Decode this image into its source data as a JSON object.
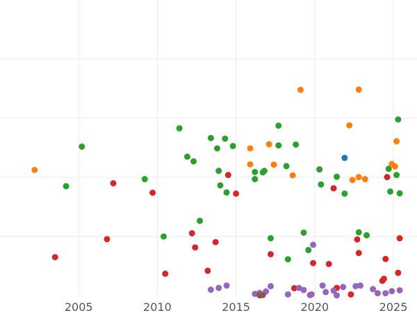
{
  "chart_data": {
    "type": "scatter",
    "title": "",
    "xlabel": "",
    "ylabel": "",
    "xlim": [
      2000,
      2026.5
    ],
    "ylim": [
      0,
      100
    ],
    "grid": true,
    "x_ticks": [
      2005,
      2010,
      2015,
      2020,
      2025
    ],
    "x_tick_labels": [
      "2005",
      "2010",
      "2015",
      "2020",
      "2025"
    ],
    "y_gridlines": [
      20,
      40,
      60,
      80
    ],
    "series": [
      {
        "name": "green",
        "color": "#2ca02c",
        "points": [
          [
            2005.2,
            50.4
          ],
          [
            2004.2,
            37.0
          ],
          [
            2009.2,
            39.4
          ],
          [
            2010.4,
            20.0
          ],
          [
            2011.4,
            56.6
          ],
          [
            2011.9,
            47.0
          ],
          [
            2012.3,
            45.4
          ],
          [
            2012.7,
            25.3
          ],
          [
            2013.4,
            53.3
          ],
          [
            2013.8,
            49.8
          ],
          [
            2013.9,
            42.2
          ],
          [
            2014.0,
            37.3
          ],
          [
            2014.3,
            53.1
          ],
          [
            2014.4,
            34.9
          ],
          [
            2014.8,
            50.6
          ],
          [
            2016.2,
            41.8
          ],
          [
            2016.2,
            39.4
          ],
          [
            2016.7,
            41.7
          ],
          [
            2016.8,
            42.2
          ],
          [
            2017.2,
            19.4
          ],
          [
            2017.7,
            57.5
          ],
          [
            2017.7,
            50.8
          ],
          [
            2018.2,
            43.8
          ],
          [
            2018.3,
            12.3
          ],
          [
            2018.8,
            51.1
          ],
          [
            2019.3,
            21.3
          ],
          [
            2019.6,
            15.4
          ],
          [
            2020.3,
            42.7
          ],
          [
            2020.4,
            37.6
          ],
          [
            2021.4,
            40.2
          ],
          [
            2021.9,
            34.5
          ],
          [
            2022.8,
            21.4
          ],
          [
            2023.3,
            20.4
          ],
          [
            2024.8,
            35.2
          ],
          [
            2024.7,
            42.9
          ],
          [
            2025.2,
            40.8
          ],
          [
            2025.3,
            59.6
          ],
          [
            2025.4,
            34.6
          ]
        ]
      },
      {
        "name": "orange",
        "color": "#ff7f0e",
        "points": [
          [
            2002.2,
            42.5
          ],
          [
            2015.9,
            49.8
          ],
          [
            2015.9,
            44.4
          ],
          [
            2017.1,
            51.2
          ],
          [
            2017.4,
            44.3
          ],
          [
            2018.6,
            40.7
          ],
          [
            2019.1,
            69.6
          ],
          [
            2022.2,
            57.6
          ],
          [
            2022.4,
            39.1
          ],
          [
            2022.8,
            69.7
          ],
          [
            2022.8,
            40.1
          ],
          [
            2023.2,
            39.4
          ],
          [
            2024.9,
            44.5
          ],
          [
            2025.1,
            43.7
          ],
          [
            2025.2,
            52.2
          ]
        ]
      },
      {
        "name": "red",
        "color": "#d62728",
        "points": [
          [
            2003.5,
            13.0
          ],
          [
            2006.8,
            19.1
          ],
          [
            2007.2,
            38.0
          ],
          [
            2009.7,
            34.8
          ],
          [
            2010.5,
            7.4
          ],
          [
            2012.2,
            21.1
          ],
          [
            2012.4,
            16.3
          ],
          [
            2013.2,
            8.4
          ],
          [
            2013.7,
            18.1
          ],
          [
            2014.5,
            40.8
          ],
          [
            2015.0,
            34.5
          ],
          [
            2017.2,
            14.0
          ],
          [
            2018.7,
            2.5
          ],
          [
            2019.9,
            11.0
          ],
          [
            2020.9,
            10.7
          ],
          [
            2021.2,
            36.3
          ],
          [
            2021.4,
            2.6
          ],
          [
            2022.3,
            0.4
          ],
          [
            2022.7,
            19.0
          ],
          [
            2022.8,
            14.4
          ],
          [
            2024.3,
            5.0
          ],
          [
            2024.4,
            5.7
          ],
          [
            2024.5,
            12.4
          ],
          [
            2024.6,
            40.1
          ],
          [
            2025.3,
            7.7
          ],
          [
            2025.4,
            19.4
          ]
        ]
      },
      {
        "name": "purple",
        "color": "#9467bd",
        "points": [
          [
            2013.4,
            2.0
          ],
          [
            2013.9,
            2.6
          ],
          [
            2014.4,
            3.4
          ],
          [
            2016.2,
            0.6
          ],
          [
            2016.5,
            0.9
          ],
          [
            2016.9,
            1.4
          ],
          [
            2017.2,
            3.2
          ],
          [
            2018.3,
            0.4
          ],
          [
            2019.0,
            2.6
          ],
          [
            2019.3,
            1.9
          ],
          [
            2019.7,
            0.2
          ],
          [
            2019.8,
            0.4
          ],
          [
            2019.9,
            17.2
          ],
          [
            2020.5,
            3.4
          ],
          [
            2020.7,
            1.2
          ],
          [
            2021.2,
            1.7
          ],
          [
            2021.4,
            0.1
          ],
          [
            2021.8,
            2.9
          ],
          [
            2022.6,
            3.2
          ],
          [
            2022.9,
            3.4
          ],
          [
            2023.7,
            2.2
          ],
          [
            2024.0,
            0.8
          ],
          [
            2024.5,
            0.8
          ],
          [
            2024.9,
            1.5
          ],
          [
            2025.4,
            1.8
          ]
        ]
      },
      {
        "name": "blue",
        "color": "#1f77b4",
        "points": [
          [
            2021.9,
            46.6
          ]
        ]
      },
      {
        "name": "brown",
        "color": "#8c564b",
        "points": [
          [
            2016.5,
            0.1
          ],
          [
            2016.7,
            0.2
          ]
        ]
      }
    ]
  }
}
